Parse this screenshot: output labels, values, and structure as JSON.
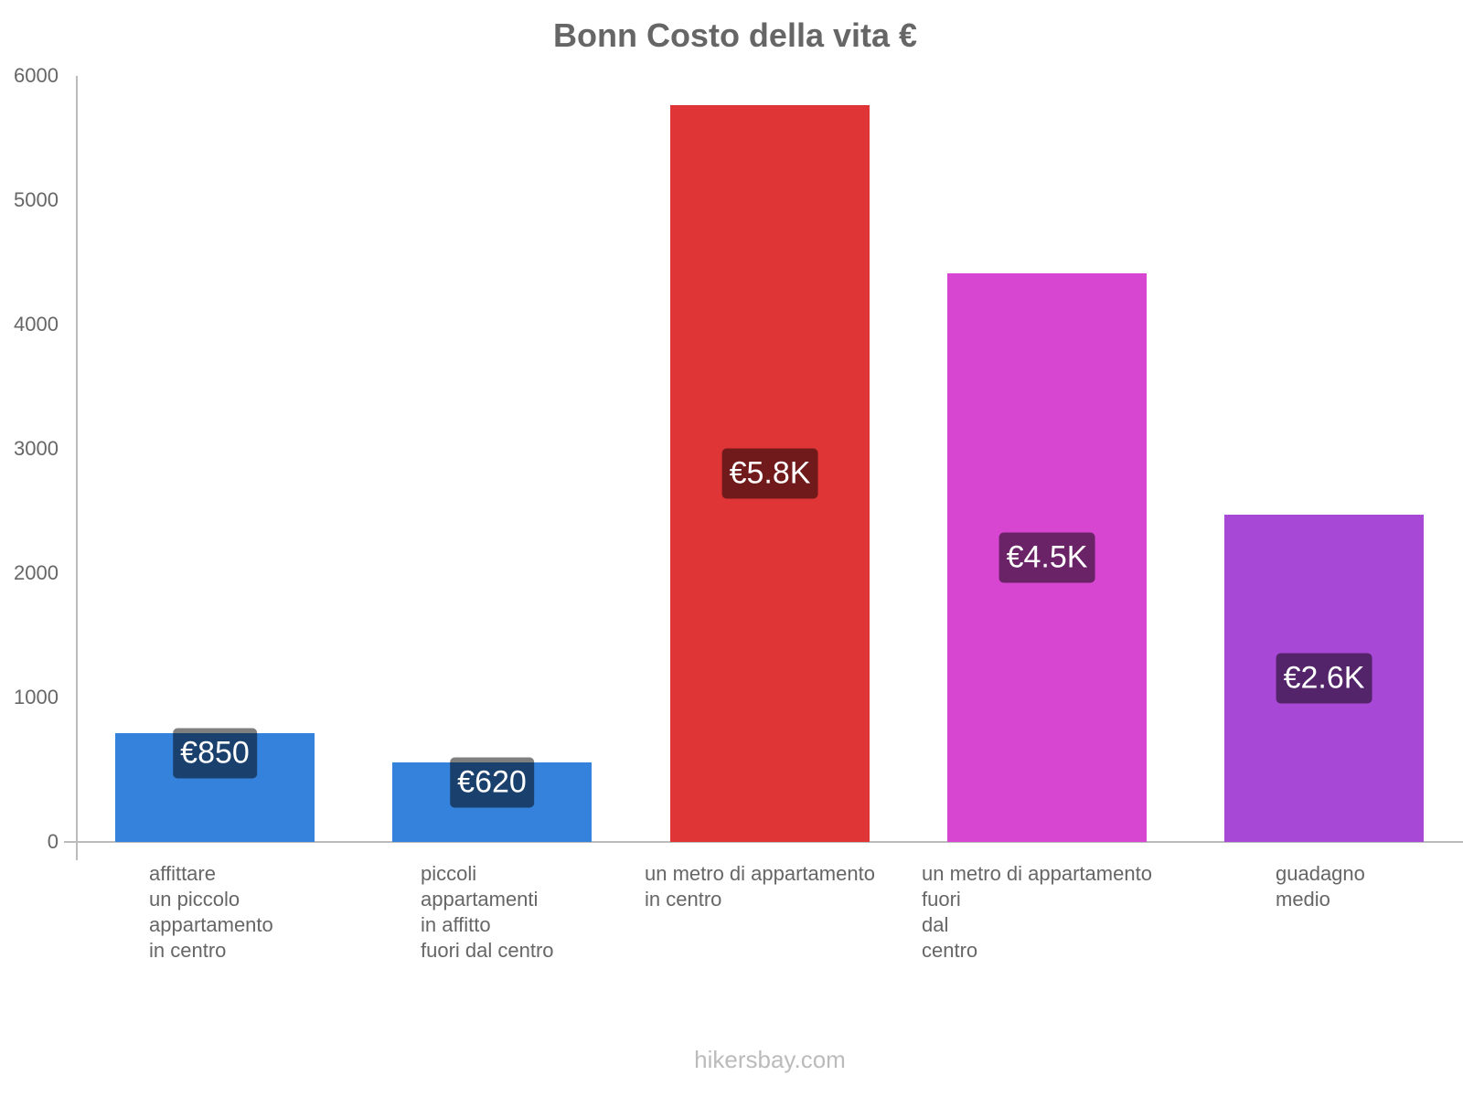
{
  "chart_data": {
    "type": "bar",
    "title": "Bonn Costo della vita €",
    "xlabel": "",
    "ylabel": "",
    "ylim": [
      0,
      6000
    ],
    "yticks": [
      "6000",
      "5000",
      "4000",
      "3000",
      "2000",
      "1000",
      "0"
    ],
    "grid": false,
    "categories": [
      "affittare\nun piccolo\nappartamento\nin centro",
      "piccoli\nappartamenti\nin affitto\nfuori dal centro",
      "un metro di appartamento\nin centro",
      "un metro di appartamento\nfuori\ndal\ncentro",
      "guadagno\nmedio"
    ],
    "values": [
      850,
      620,
      5770,
      4450,
      2560
    ],
    "value_labels": [
      "€850",
      "€620",
      "€5.8K",
      "€4.5K",
      "€2.6K"
    ],
    "colors": [
      "#3582dc",
      "#3582dc",
      "#e03537",
      "#d646d1",
      "#a848d6"
    ]
  },
  "footer": "hikersbay.com"
}
